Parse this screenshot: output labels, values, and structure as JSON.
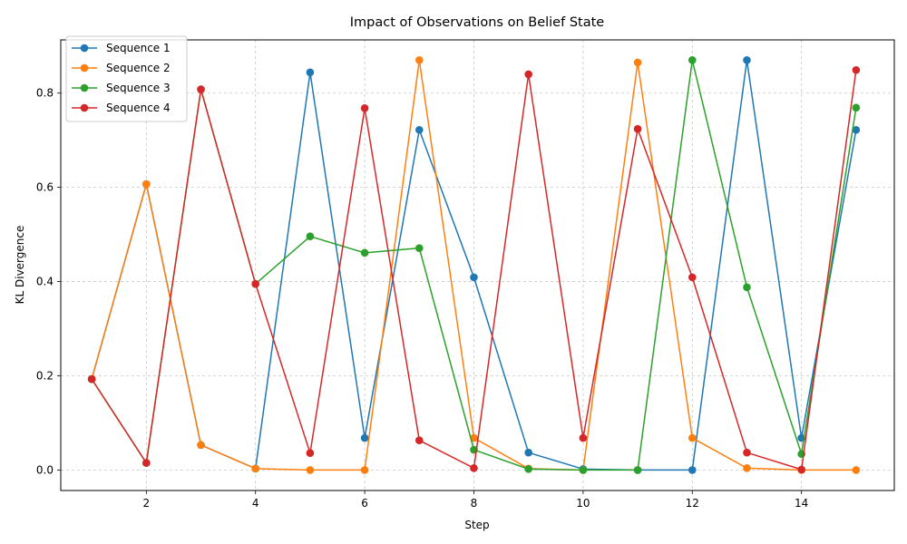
{
  "chart_data": {
    "type": "line",
    "title": "Impact of Observations on Belief State",
    "xlabel": "Step",
    "ylabel": "KL Divergence",
    "xlim": [
      0.433,
      15.7
    ],
    "ylim": [
      -0.0435,
      0.913
    ],
    "xticks": [
      2,
      4,
      6,
      8,
      10,
      12,
      14
    ],
    "yticks": [
      0.0,
      0.2,
      0.4,
      0.6,
      0.8
    ],
    "grid": true,
    "legend_position": "upper-left",
    "x": [
      1,
      2,
      3,
      4,
      5,
      6,
      7,
      8,
      9,
      10,
      11,
      12,
      13,
      14,
      15
    ],
    "series": [
      {
        "name": "Sequence 1",
        "color": "#1f77b4",
        "values": [
          0.193,
          0.607,
          0.053,
          0.003,
          0.844,
          0.068,
          0.722,
          0.409,
          0.037,
          0.002,
          0.0,
          0.0,
          0.87,
          0.068,
          0.722
        ]
      },
      {
        "name": "Sequence 2",
        "color": "#ff7f0e",
        "values": [
          0.193,
          0.607,
          0.053,
          0.003,
          0.0,
          0.0,
          0.87,
          0.068,
          0.003,
          0.0,
          0.865,
          0.068,
          0.004,
          0.0,
          0.0
        ]
      },
      {
        "name": "Sequence 3",
        "color": "#2ca02c",
        "values": [
          0.193,
          0.015,
          0.808,
          0.395,
          0.496,
          0.461,
          0.471,
          0.043,
          0.002,
          0.0,
          0.0,
          0.87,
          0.388,
          0.034,
          0.769
        ]
      },
      {
        "name": "Sequence 4",
        "color": "#d62728",
        "values": [
          0.193,
          0.015,
          0.808,
          0.395,
          0.036,
          0.768,
          0.063,
          0.004,
          0.84,
          0.068,
          0.724,
          0.409,
          0.037,
          0.001,
          0.849
        ]
      }
    ]
  }
}
